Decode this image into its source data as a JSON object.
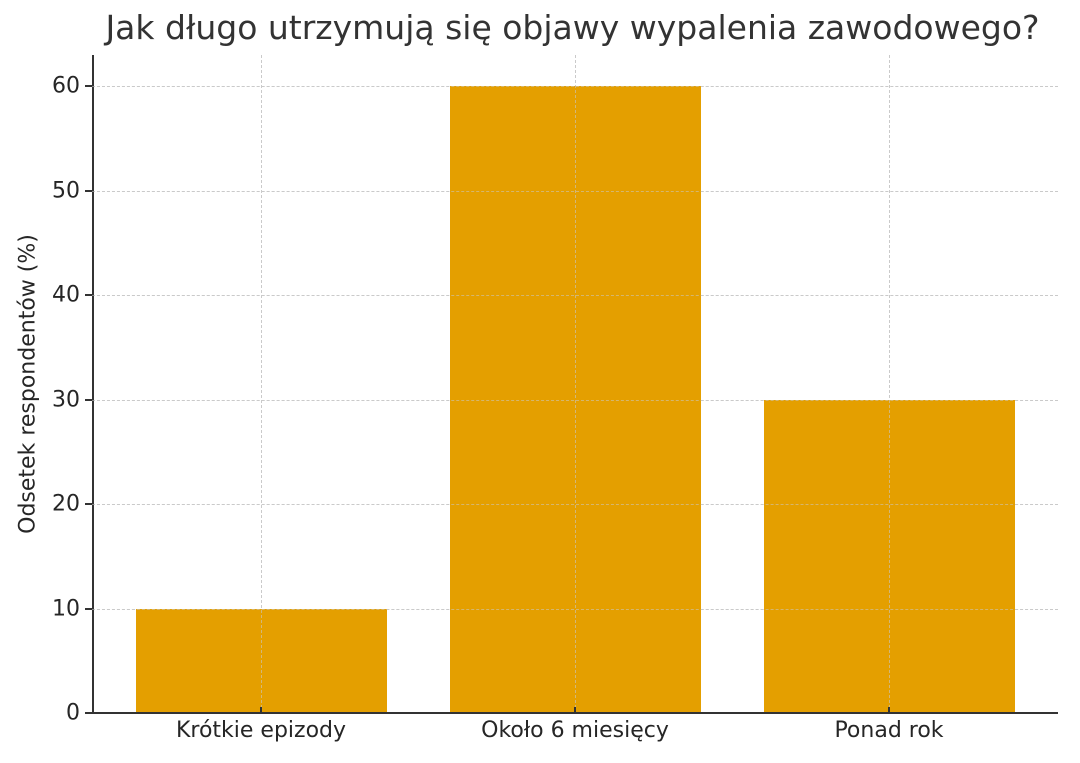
{
  "chart_data": {
    "type": "bar",
    "title": "Jak długo utrzymują się objawy wypalenia zawodowego?",
    "xlabel": "",
    "ylabel": "Odsetek respondentów (%)",
    "categories": [
      "Krótkie epizody",
      "Około 6 miesięcy",
      "Ponad rok"
    ],
    "values": [
      10,
      60,
      30
    ],
    "ylim": [
      0,
      63
    ],
    "yticks": [
      0,
      10,
      20,
      30,
      40,
      50,
      60
    ],
    "grid": true,
    "bar_color": "#E49F00"
  }
}
